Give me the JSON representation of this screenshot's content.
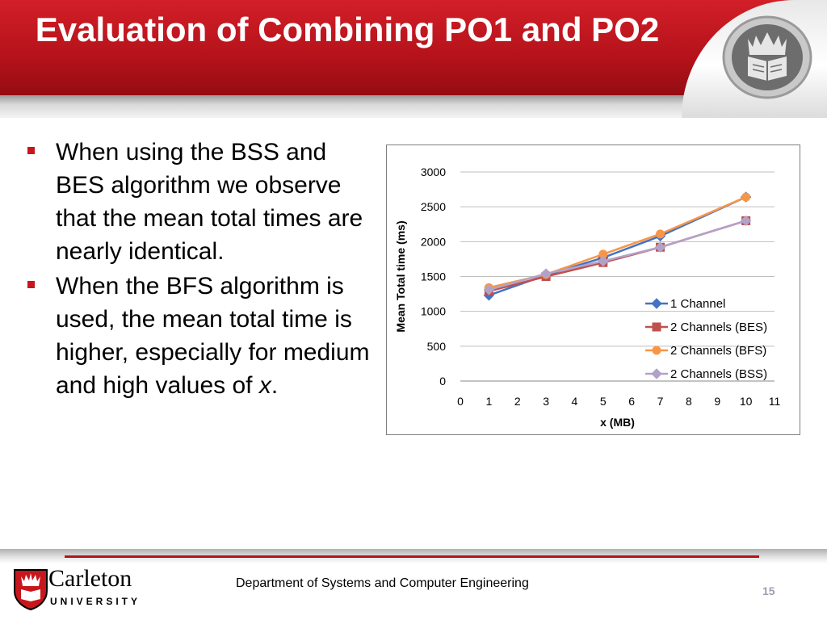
{
  "slide": {
    "title": "Evaluation of Combining PO1 and PO2",
    "bullets": [
      {
        "text": "When using the BSS and BES algorithm we observe that the mean total times are nearly identical.",
        "emphasis": ""
      },
      {
        "text": "When the BFS algorithm is used, the mean total time is higher, especially for medium and high values of ",
        "emphasis": "x",
        "suffix": "."
      }
    ],
    "bullet_color": "#c8161d",
    "header_color": "#c41920"
  },
  "footer": {
    "department": "Department of Systems and Computer Engineering",
    "page_number": "15",
    "logo_name": "Carleton",
    "logo_university": "UNIVERSITY"
  },
  "chart_data": {
    "type": "line",
    "xlabel": "x (MB)",
    "ylabel": "Mean Total time (ms)",
    "xlim": [
      0,
      11
    ],
    "ylim": [
      0,
      3000
    ],
    "x_ticks": [
      0,
      1,
      2,
      3,
      4,
      5,
      6,
      7,
      8,
      9,
      10,
      11
    ],
    "y_ticks": [
      0,
      500,
      1000,
      1500,
      2000,
      2500,
      3000
    ],
    "grid": "horizontal",
    "legend_position": "right",
    "x": [
      1,
      3,
      5,
      7,
      10
    ],
    "series": [
      {
        "name": "1 Channel",
        "values": [
          1230,
          1520,
          1770,
          2080,
          2640
        ],
        "color": "#4472c4",
        "marker": "diamond"
      },
      {
        "name": "2 Channels (BES)",
        "values": [
          1290,
          1500,
          1700,
          1920,
          2300
        ],
        "color": "#c0504d",
        "marker": "square"
      },
      {
        "name": "2 Channels (BFS)",
        "values": [
          1340,
          1530,
          1820,
          2110,
          2640
        ],
        "color": "#f79646",
        "marker": "circle"
      },
      {
        "name": "2 Channels (BSS)",
        "values": [
          1310,
          1540,
          1720,
          1920,
          2300
        ],
        "color": "#b3a2c7",
        "marker": "diamond"
      }
    ]
  }
}
